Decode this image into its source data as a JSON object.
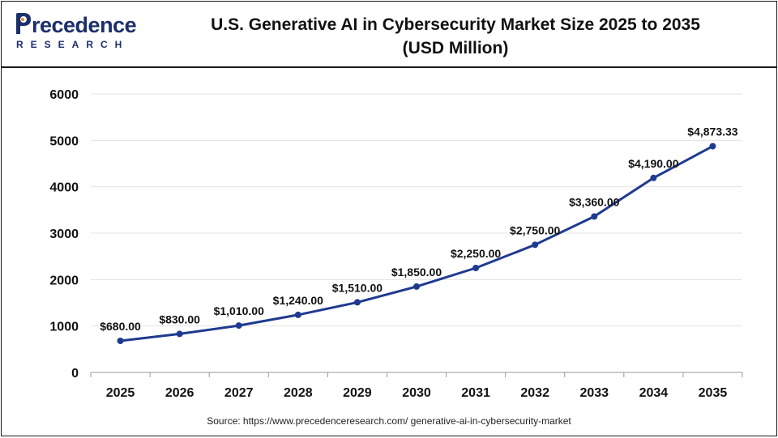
{
  "header": {
    "logo_word": "recedence",
    "logo_sub": "RESEARCH",
    "title_line1": "U.S. Generative AI in Cybersecurity Market Size 2025 to 2035",
    "title_line2": "(USD Million)"
  },
  "footer": {
    "source": "Source: https://www.precedenceresearch.com/ generative-ai-in-cybersecurity-market"
  },
  "colors": {
    "line": "#1f3a8f",
    "logo": "#1c2f6b",
    "grid": "#e3e3e3"
  },
  "chart_data": {
    "type": "line",
    "title": "U.S. Generative AI in Cybersecurity Market Size 2025 to 2035 (USD Million)",
    "categories": [
      "2025",
      "2026",
      "2027",
      "2028",
      "2029",
      "2030",
      "2031",
      "2032",
      "2033",
      "2034",
      "2035"
    ],
    "series": [
      {
        "values": [
          680,
          830,
          1010,
          1240,
          1510,
          1850,
          2250,
          2750,
          3360,
          4190,
          4873.33
        ],
        "labels": [
          "$680.00",
          "$830.00",
          "$1,010.00",
          "$1,240.00",
          "$1,510.00",
          "$1,850.00",
          "$2,250.00",
          "$2,750.00",
          "$3,360.00",
          "$4,190.00",
          "$4,873.33"
        ]
      }
    ],
    "yticks": [
      "0",
      "1000",
      "2000",
      "3000",
      "4000",
      "5000",
      "6000"
    ],
    "ylim": [
      0,
      6000
    ],
    "grid": true,
    "legend": "none"
  }
}
